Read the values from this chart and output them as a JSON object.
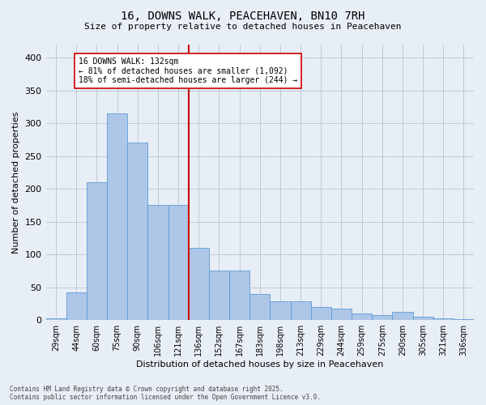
{
  "title1": "16, DOWNS WALK, PEACEHAVEN, BN10 7RH",
  "title2": "Size of property relative to detached houses in Peacehaven",
  "xlabel": "Distribution of detached houses by size in Peacehaven",
  "ylabel": "Number of detached properties",
  "categories": [
    "29sqm",
    "44sqm",
    "60sqm",
    "75sqm",
    "90sqm",
    "106sqm",
    "121sqm",
    "136sqm",
    "152sqm",
    "167sqm",
    "183sqm",
    "198sqm",
    "213sqm",
    "229sqm",
    "244sqm",
    "259sqm",
    "275sqm",
    "290sqm",
    "305sqm",
    "321sqm",
    "336sqm"
  ],
  "values": [
    2,
    42,
    210,
    315,
    270,
    175,
    175,
    110,
    75,
    75,
    40,
    28,
    28,
    20,
    18,
    10,
    8,
    13,
    5,
    2,
    1
  ],
  "bar_color": "#aec6e8",
  "bar_edge_color": "#5b9bd5",
  "vline_color": "#cc0000",
  "annotation_title": "16 DOWNS WALK: 132sqm",
  "annotation_line1": "← 81% of detached houses are smaller (1,092)",
  "annotation_line2": "18% of semi-detached houses are larger (244) →",
  "annotation_box_color": "#ffffff",
  "annotation_box_edge": "#cc0000",
  "ylim": [
    0,
    420
  ],
  "yticks": [
    0,
    50,
    100,
    150,
    200,
    250,
    300,
    350,
    400
  ],
  "bg_color": "#e8eef5",
  "footnote1": "Contains HM Land Registry data © Crown copyright and database right 2025.",
  "footnote2": "Contains public sector information licensed under the Open Government Licence v3.0."
}
